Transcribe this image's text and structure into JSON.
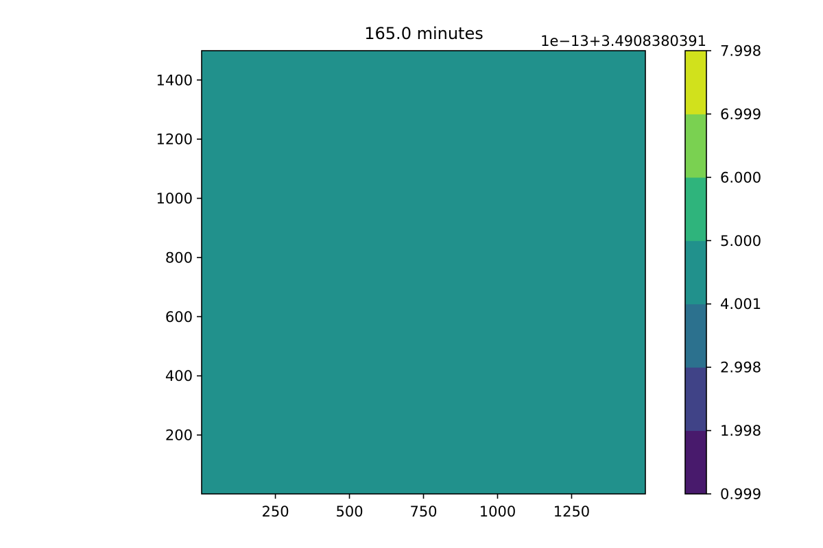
{
  "chart_data": {
    "type": "heatmap",
    "title": "165.0 minutes",
    "xlabel": "",
    "ylabel": "",
    "xlim": [
      1,
      1499
    ],
    "ylim": [
      1,
      1499
    ],
    "x_ticks": [
      250,
      500,
      750,
      1000,
      1250
    ],
    "y_ticks": [
      200,
      400,
      600,
      800,
      1000,
      1200,
      1400
    ],
    "x_tick_labels": [
      "250",
      "500",
      "750",
      "1000",
      "1250"
    ],
    "y_tick_labels": [
      "200",
      "400",
      "600",
      "800",
      "1000",
      "1200",
      "1400"
    ],
    "field_level_index": 3,
    "field_color": "#21918c",
    "grid": false,
    "colorbar": {
      "offset_label": "1e−13+3.4908380391",
      "tick_labels": [
        "0.999",
        "1.998",
        "2.998",
        "4.001",
        "5.000",
        "6.000",
        "6.999",
        "7.998"
      ],
      "levels": [
        0.999,
        1.998,
        2.998,
        4.001,
        5.0,
        6.0,
        6.999,
        7.998
      ],
      "colors": [
        "#481a6c",
        "#404387",
        "#2c718e",
        "#21918c",
        "#2fb47c",
        "#7ad151",
        "#d1e11c"
      ]
    }
  }
}
